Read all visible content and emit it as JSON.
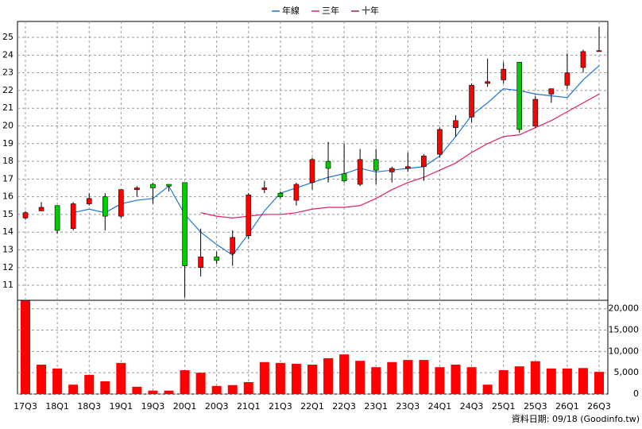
{
  "chart_data": {
    "type": "candlestick",
    "categories": [
      "17Q3",
      null,
      "18Q1",
      null,
      "18Q3",
      null,
      "19Q1",
      null,
      "19Q3",
      null,
      "20Q1",
      null,
      "20Q3",
      null,
      "21Q1",
      null,
      "21Q3",
      null,
      "22Q1",
      null,
      "22Q3",
      null,
      "23Q1",
      null,
      "23Q3",
      null,
      "24Q1",
      null,
      "24Q3",
      null,
      "25Q1",
      null,
      "25Q3",
      null,
      "26Q1",
      null,
      "26Q3"
    ],
    "open": [
      14.8,
      15.2,
      15.5,
      14.2,
      15.6,
      16.0,
      14.9,
      16.4,
      16.7,
      16.7,
      16.8,
      12.0,
      12.6,
      12.8,
      13.8,
      16.4,
      16.2,
      15.8,
      16.8,
      18.0,
      17.3,
      16.7,
      18.1,
      17.4,
      17.6,
      17.7,
      18.4,
      19.9,
      20.5,
      22.4,
      22.6,
      23.6,
      20.0,
      21.8,
      22.3,
      23.3,
      24.2
    ],
    "high": [
      15.2,
      15.7,
      15.5,
      15.7,
      16.2,
      16.2,
      16.4,
      16.6,
      16.8,
      16.7,
      16.8,
      14.2,
      12.9,
      14.1,
      16.2,
      16.9,
      16.3,
      16.8,
      18.2,
      19.1,
      19.0,
      18.7,
      18.7,
      17.7,
      18.5,
      18.4,
      19.9,
      20.6,
      22.4,
      23.8,
      23.6,
      23.6,
      21.7,
      22.1,
      24.1,
      24.3,
      25.6
    ],
    "low": [
      14.7,
      15.2,
      13.9,
      14.1,
      15.5,
      14.1,
      14.8,
      16.0,
      15.6,
      16.3,
      10.3,
      11.5,
      12.2,
      12.1,
      13.6,
      16.2,
      15.9,
      15.5,
      16.4,
      16.8,
      16.8,
      16.6,
      16.7,
      16.8,
      17.4,
      16.9,
      18.2,
      19.4,
      20.2,
      22.2,
      22.4,
      19.6,
      19.9,
      21.3,
      22.1,
      23.0,
      24.2
    ],
    "close": [
      15.1,
      15.4,
      14.1,
      15.6,
      15.9,
      14.9,
      16.4,
      16.5,
      16.5,
      16.6,
      12.1,
      12.6,
      12.4,
      13.7,
      16.1,
      16.5,
      16.0,
      16.7,
      18.1,
      17.6,
      16.9,
      18.1,
      17.5,
      17.6,
      17.7,
      18.3,
      19.8,
      20.3,
      22.3,
      22.5,
      23.2,
      19.8,
      21.5,
      22.1,
      23.0,
      24.2,
      24.25
    ],
    "up_color": "#ff0000",
    "down_color": "#00cc00",
    "series": [
      {
        "name": "年線",
        "color": "#1f78d1",
        "values": [
          null,
          null,
          null,
          15.1,
          15.3,
          15.1,
          15.6,
          15.8,
          15.9,
          16.6,
          15.0,
          14.0,
          13.3,
          12.7,
          13.9,
          15.2,
          16.2,
          16.5,
          16.8,
          17.1,
          17.3,
          17.6,
          17.4,
          17.5,
          17.6,
          17.7,
          18.3,
          19.4,
          20.6,
          21.3,
          22.1,
          22.0,
          21.8,
          21.7,
          21.6,
          22.6,
          23.4
        ]
      },
      {
        "name": "三年",
        "color": "#e0206a",
        "values": [
          null,
          null,
          null,
          null,
          null,
          null,
          null,
          null,
          null,
          null,
          null,
          15.1,
          14.9,
          14.8,
          14.9,
          15.0,
          15.0,
          15.1,
          15.3,
          15.4,
          15.4,
          15.5,
          15.9,
          16.4,
          16.8,
          17.1,
          17.5,
          17.9,
          18.5,
          19.0,
          19.4,
          19.5,
          19.9,
          20.3,
          20.8,
          21.3,
          21.8
        ]
      },
      {
        "name": "十年",
        "color": "#a0206a",
        "values": [
          null,
          null,
          null,
          null,
          null,
          null,
          null,
          null,
          null,
          null,
          null,
          null,
          null,
          null,
          null,
          null,
          null,
          null,
          null,
          null,
          null,
          null,
          null,
          null,
          null,
          null,
          null,
          null,
          null,
          null,
          null,
          null,
          null,
          null,
          null,
          null,
          null
        ]
      }
    ],
    "ylim": [
      10.15,
      25.9
    ],
    "yticks": [
      11,
      12,
      13,
      14,
      15,
      16,
      17,
      18,
      19,
      20,
      21,
      22,
      23,
      24,
      25
    ],
    "grid": true,
    "volume": {
      "color": "#ff0000",
      "values": [
        21900,
        6900,
        6000,
        2200,
        4500,
        3000,
        7300,
        1700,
        800,
        800,
        5600,
        5000,
        1900,
        2100,
        2800,
        7500,
        7300,
        7100,
        6900,
        8400,
        9300,
        7800,
        6300,
        7500,
        8000,
        8000,
        6300,
        6900,
        6300,
        2200,
        5600,
        6500,
        7700,
        6000,
        6000,
        6100,
        5200
      ],
      "ylim": [
        0,
        22000
      ],
      "yticks": [
        0,
        {
          "value": 5000,
          "label": "5,000"
        },
        {
          "value": 10000,
          "label": "10,000"
        },
        {
          "value": 15000,
          "label": "15,000"
        },
        {
          "value": 20000,
          "label": "20,000"
        }
      ]
    },
    "footnote": "資料日期: 09/18 (Goodinfo.tw)"
  }
}
